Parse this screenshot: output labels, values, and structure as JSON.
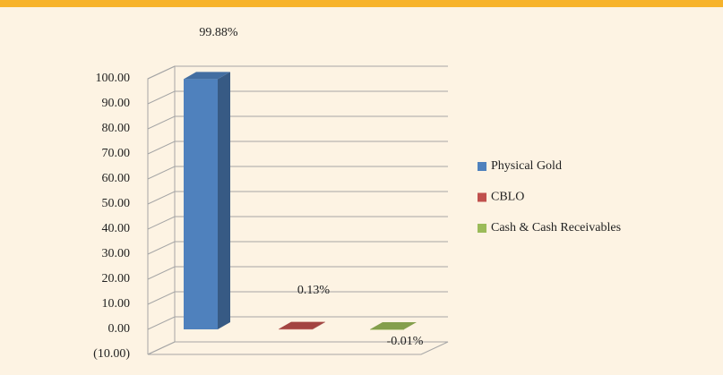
{
  "chart_data": {
    "type": "bar3d",
    "categories": [
      "Physical Gold",
      "CBLO",
      "Cash & Cash Receivables"
    ],
    "values": [
      99.88,
      0.13,
      -0.01
    ],
    "value_labels": [
      "99.88%",
      "0.13%",
      "-0.01%"
    ],
    "colors": [
      "#4f81bd",
      "#c0504d",
      "#9bbb59"
    ],
    "ylim": [
      -10,
      100
    ],
    "yticks": [
      {
        "value": -10,
        "label": "(10.00)"
      },
      {
        "value": 0,
        "label": "0.00"
      },
      {
        "value": 10,
        "label": "10.00"
      },
      {
        "value": 20,
        "label": "20.00"
      },
      {
        "value": 30,
        "label": "30.00"
      },
      {
        "value": 40,
        "label": "40.00"
      },
      {
        "value": 50,
        "label": "50.00"
      },
      {
        "value": 60,
        "label": "60.00"
      },
      {
        "value": 70,
        "label": "70.00"
      },
      {
        "value": 80,
        "label": "80.00"
      },
      {
        "value": 90,
        "label": "90.00"
      },
      {
        "value": 100,
        "label": "100.00"
      }
    ],
    "grid": true,
    "legend": "right"
  }
}
